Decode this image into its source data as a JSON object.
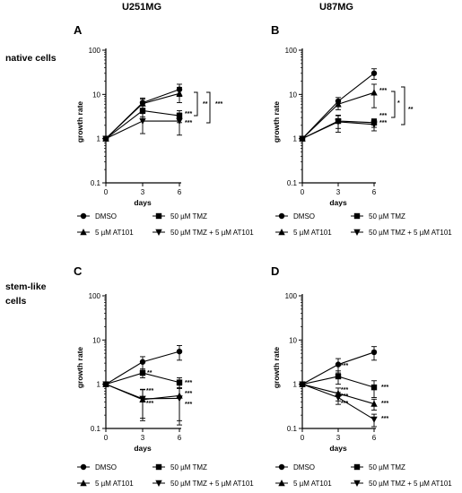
{
  "column_titles": [
    "U251MG",
    "U87MG"
  ],
  "row_labels": [
    [
      "native cells"
    ],
    [
      "stem-like",
      "cells"
    ]
  ],
  "legend_labels": [
    "DMSO",
    "50 µM TMZ",
    "5 µM AT101",
    "50 µM TMZ + 5 µM AT101"
  ],
  "chart_data": [
    {
      "type": "line",
      "panel": "A",
      "x": [
        0,
        3,
        6
      ],
      "xlabel": "days",
      "ylabel": "growth rate",
      "yscale": "log",
      "ylim": [
        0.1,
        100
      ],
      "yticks": [
        "0.1",
        "1",
        "10",
        "100"
      ],
      "xticks": [
        "0",
        "3",
        "6"
      ],
      "series": [
        {
          "name": "DMSO",
          "marker": "circle",
          "values": [
            1,
            6.5,
            13
          ],
          "err": [
            0,
            1.8,
            4
          ]
        },
        {
          "name": "50 µM TMZ",
          "marker": "square",
          "values": [
            1,
            4.3,
            3.3
          ],
          "err": [
            0,
            1.2,
            1.0
          ]
        },
        {
          "name": "5 µM AT101",
          "marker": "triangle-up",
          "values": [
            1,
            6.2,
            10.5
          ],
          "err": [
            0,
            1.6,
            4
          ]
        },
        {
          "name": "50 µM TMZ + 5 µM AT101",
          "marker": "triangle-down",
          "values": [
            1,
            2.5,
            2.5
          ],
          "err": [
            0,
            1.2,
            1.3
          ]
        }
      ],
      "annotations": [
        "**",
        "***",
        "***",
        "***"
      ]
    },
    {
      "type": "line",
      "panel": "B",
      "x": [
        0,
        3,
        6
      ],
      "xlabel": "days",
      "ylabel": "growth rate",
      "yscale": "log",
      "ylim": [
        0.1,
        100
      ],
      "yticks": [
        "0.1",
        "1",
        "10",
        "100"
      ],
      "xticks": [
        "0",
        "3",
        "6"
      ],
      "series": [
        {
          "name": "DMSO",
          "marker": "circle",
          "values": [
            1,
            7,
            30
          ],
          "err": [
            0,
            1.5,
            8
          ]
        },
        {
          "name": "50 µM TMZ",
          "marker": "square",
          "values": [
            1,
            2.5,
            2.3
          ],
          "err": [
            0,
            0.8,
            0.5
          ]
        },
        {
          "name": "5 µM AT101",
          "marker": "triangle-up",
          "values": [
            1,
            6,
            11
          ],
          "err": [
            0,
            1.5,
            6
          ]
        },
        {
          "name": "50 µM TMZ + 5 µM AT101",
          "marker": "triangle-down",
          "values": [
            1,
            2.4,
            2.1
          ],
          "err": [
            0,
            1.0,
            0.6
          ]
        }
      ],
      "annotations": [
        "***",
        "***",
        "***",
        "*",
        "**"
      ]
    },
    {
      "type": "line",
      "panel": "C",
      "x": [
        0,
        3,
        6
      ],
      "xlabel": "days",
      "ylabel": "growth rate",
      "yscale": "log",
      "ylim": [
        0.1,
        100
      ],
      "yticks": [
        "0.1",
        "1",
        "10",
        "100"
      ],
      "xticks": [
        "0",
        "3",
        "6"
      ],
      "series": [
        {
          "name": "DMSO",
          "marker": "circle",
          "values": [
            1,
            3.2,
            5.5
          ],
          "err": [
            0,
            1.0,
            2.0
          ]
        },
        {
          "name": "50 µM TMZ",
          "marker": "square",
          "values": [
            1,
            1.8,
            1.1
          ],
          "err": [
            0,
            0.4,
            0.3
          ]
        },
        {
          "name": "5 µM AT101",
          "marker": "triangle-up",
          "values": [
            1,
            0.45,
            0.55
          ],
          "err": [
            0,
            0.3,
            0.4
          ]
        },
        {
          "name": "50 µM TMZ + 5 µM AT101",
          "marker": "triangle-down",
          "values": [
            1,
            0.47,
            0.48
          ],
          "err": [
            0,
            0.3,
            0.36
          ]
        }
      ],
      "annotations": [
        "**",
        "***",
        "***",
        "***",
        "***",
        "***"
      ]
    },
    {
      "type": "line",
      "panel": "D",
      "x": [
        0,
        3,
        6
      ],
      "xlabel": "days",
      "ylabel": "growth rate",
      "yscale": "log",
      "ylim": [
        0.1,
        100
      ],
      "yticks": [
        "0.1",
        "1",
        "10",
        "100"
      ],
      "xticks": [
        "0",
        "3",
        "6"
      ],
      "series": [
        {
          "name": "DMSO",
          "marker": "circle",
          "values": [
            1,
            2.8,
            5.3
          ],
          "err": [
            0,
            1.0,
            1.8
          ]
        },
        {
          "name": "50 µM TMZ",
          "marker": "square",
          "values": [
            1,
            1.5,
            0.85
          ],
          "err": [
            0,
            0.5,
            0.35
          ]
        },
        {
          "name": "5 µM AT101",
          "marker": "triangle-up",
          "values": [
            1,
            0.62,
            0.36
          ],
          "err": [
            0,
            0.2,
            0.1
          ]
        },
        {
          "name": "50 µM TMZ + 5 µM AT101",
          "marker": "triangle-down",
          "values": [
            1,
            0.5,
            0.16
          ],
          "err": [
            0,
            0.15,
            0.05
          ]
        }
      ],
      "annotations": [
        "***",
        "***",
        "***",
        "***",
        "***",
        "***",
        "***"
      ]
    }
  ]
}
